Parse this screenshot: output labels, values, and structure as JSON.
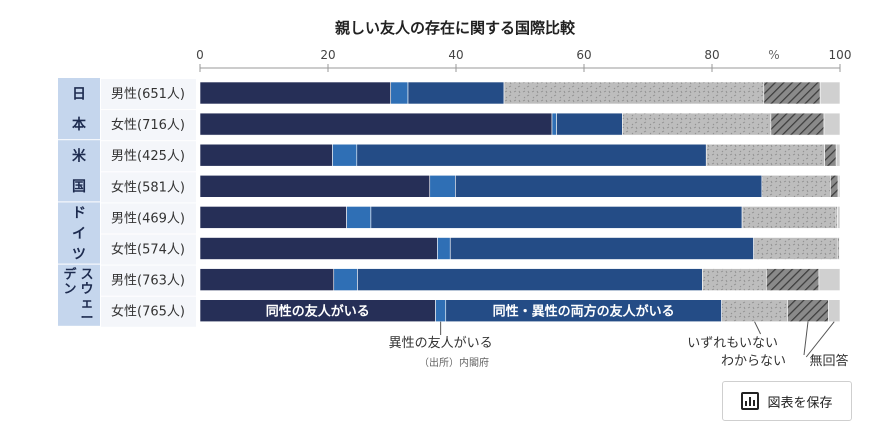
{
  "chart_data": {
    "type": "bar",
    "stacked": true,
    "orientation": "horizontal",
    "title": "親しい友人の存在に関する国際比較",
    "xlim": [
      0,
      100
    ],
    "x_ticks": [
      "0",
      "20",
      "40",
      "60",
      "80",
      "100"
    ],
    "unit_label": "%",
    "countries": [
      {
        "label": "日本",
        "chars": [
          "日",
          "本"
        ]
      },
      {
        "label": "米国",
        "chars": [
          "米",
          "国"
        ]
      },
      {
        "label": "ドイツ",
        "chars": [
          "ド",
          "イ",
          "ツ"
        ]
      },
      {
        "label": "スウェーデン",
        "chars": [
          "スウェ",
          "デン",
          "ー"
        ]
      }
    ],
    "categories": [
      "男性(651人)",
      "女性(716人)",
      "男性(425人)",
      "女性(581人)",
      "男性(469人)",
      "女性(574人)",
      "男性(763人)",
      "女性(765人)"
    ],
    "series": [
      {
        "name": "同性の友人がいる",
        "color": "#262f57",
        "values": [
          29.8,
          55.0,
          20.7,
          35.9,
          22.9,
          37.1,
          20.9,
          36.8
        ]
      },
      {
        "name": "異性の友人がいる",
        "color": "#2f6fb5",
        "values": [
          2.7,
          0.7,
          3.8,
          4.0,
          3.8,
          2.0,
          3.7,
          1.6
        ]
      },
      {
        "name": "同性・異性の両方の友人がいる",
        "color": "#244c86",
        "values": [
          15.0,
          10.3,
          54.6,
          47.9,
          58.0,
          47.4,
          53.9,
          43.1
        ]
      },
      {
        "name": "いずれもいない",
        "color": "#bdbdbd",
        "values": [
          40.6,
          23.2,
          18.5,
          10.7,
          14.7,
          13.2,
          10.0,
          10.3
        ]
      },
      {
        "name": "わからない",
        "color": "#6e6e6e",
        "values": [
          8.8,
          8.3,
          1.8,
          1.2,
          0.2,
          0.2,
          8.2,
          6.4
        ]
      },
      {
        "name": "無回答",
        "color": "#d0d0d0",
        "values": [
          3.1,
          2.5,
          0.6,
          0.3,
          0.4,
          0.1,
          3.3,
          1.8
        ]
      }
    ],
    "inner_labels": [
      "同性の友人がいる",
      "同性・異性の両方の友人がいる"
    ],
    "callouts": [
      "異性の友人がいる",
      "いずれもいない",
      "わからない",
      "無回答"
    ],
    "source": "（出所）内閣府",
    "grid": false,
    "legend": "inline-annotations"
  },
  "save_button": {
    "label": "図表を保存",
    "icon": "bar-chart-icon"
  }
}
